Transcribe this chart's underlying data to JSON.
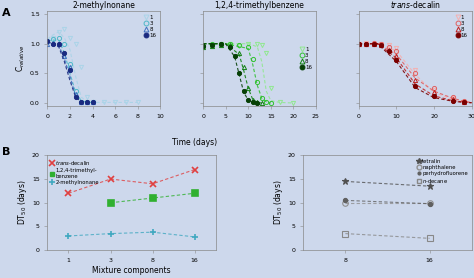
{
  "background_color": "#cdd8ec",
  "panel_A": {
    "subplot1": {
      "title": "2-methylnonane",
      "xlim": [
        0,
        10
      ],
      "ylim": [
        -0.05,
        1.55
      ],
      "xticks": [
        0,
        2,
        4,
        6,
        8,
        10
      ],
      "yticks": [
        0.0,
        0.5,
        1.0,
        1.5
      ],
      "ytick_labels": [
        "0.0",
        "0.5",
        "1.0",
        "1.5"
      ],
      "ylabel": "C$_\\mathregular{relative}$",
      "series": {
        "1": {
          "x": [
            0,
            0.5,
            1,
            1.5,
            2,
            2.5,
            3,
            3.5,
            4,
            5,
            6,
            7,
            8
          ],
          "y": [
            1.05,
            1.1,
            1.2,
            1.25,
            1.1,
            1.0,
            0.6,
            0.1,
            0.02,
            0.01,
            0.01,
            0.01,
            0.01
          ],
          "color": "#aad4e8",
          "marker": "v",
          "filled": false,
          "ms": 3
        },
        "3": {
          "x": [
            0,
            0.5,
            1,
            1.5,
            2,
            2.5,
            3,
            3.5,
            4
          ],
          "y": [
            1.05,
            1.08,
            1.1,
            1.0,
            0.65,
            0.2,
            0.02,
            0.01,
            0.01
          ],
          "color": "#50b8c8",
          "marker": "o",
          "filled": false,
          "ms": 3
        },
        "8": {
          "x": [
            0,
            0.5,
            1,
            1.5,
            2,
            2.5,
            3,
            3.5,
            4
          ],
          "y": [
            1.0,
            1.02,
            1.0,
            0.8,
            0.6,
            0.15,
            0.02,
            0.01,
            0.01
          ],
          "color": "#4070c0",
          "marker": "^",
          "filled": false,
          "ms": 3
        },
        "16": {
          "x": [
            0,
            0.5,
            1,
            1.5,
            2,
            2.5,
            3,
            3.5,
            4
          ],
          "y": [
            1.05,
            1.0,
            1.0,
            0.85,
            0.55,
            0.1,
            0.02,
            0.01,
            0.01
          ],
          "color": "#1a2a80",
          "marker": "o",
          "filled": true,
          "ms": 3
        }
      },
      "fit": {
        "1": {
          "x": [
            0,
            0.5,
            1,
            1.5,
            2,
            2.5,
            3,
            3.5,
            4,
            5,
            6,
            7,
            8
          ],
          "y": [
            1.08,
            1.15,
            1.2,
            1.1,
            0.9,
            0.45,
            0.1,
            0.03,
            0.01,
            0.01,
            0.01,
            0.01,
            0.01
          ]
        },
        "3": {
          "x": [
            0,
            0.5,
            1,
            1.5,
            2,
            2.5,
            3,
            3.5,
            4
          ],
          "y": [
            1.05,
            1.06,
            1.06,
            0.85,
            0.5,
            0.18,
            0.04,
            0.01,
            0.01
          ]
        },
        "8": {
          "x": [
            0,
            0.5,
            1,
            1.5,
            2,
            2.5,
            3,
            3.5,
            4
          ],
          "y": [
            1.0,
            1.02,
            0.98,
            0.75,
            0.45,
            0.12,
            0.03,
            0.01,
            0.01
          ]
        },
        "16": {
          "x": [
            0,
            0.5,
            1,
            1.5,
            2,
            2.5,
            3,
            3.5,
            4
          ],
          "y": [
            1.04,
            1.0,
            0.95,
            0.7,
            0.38,
            0.1,
            0.02,
            0.01,
            0.01
          ]
        }
      },
      "fit_colors": {
        "1": "#aad4e8",
        "3": "#50b8c8",
        "8": "#4070c0",
        "16": "#1a2a80"
      },
      "legend_colors": [
        "#aad4e8",
        "#50b8c8",
        "#4070c0",
        "#1a2a80"
      ],
      "legend_markers": [
        "v",
        "o",
        "^",
        "o"
      ],
      "legend_filleds": [
        false,
        false,
        false,
        true
      ]
    },
    "subplot2": {
      "title": "1,2,4-trimethylbenzene",
      "xlim": [
        0,
        25
      ],
      "ylim": [
        -0.05,
        1.55
      ],
      "xticks": [
        0,
        5,
        10,
        15,
        20,
        25
      ],
      "yticks": [
        0.0,
        0.5,
        1.0,
        1.5
      ],
      "series": {
        "1": {
          "x": [
            0,
            2,
            4,
            6,
            8,
            10,
            12,
            13,
            14,
            15,
            17,
            20
          ],
          "y": [
            0.95,
            0.98,
            1.0,
            1.0,
            0.97,
            1.0,
            1.0,
            0.98,
            0.85,
            0.25,
            0.02,
            0.0
          ],
          "color": "#90e890",
          "marker": "v",
          "filled": false,
          "ms": 3
        },
        "3": {
          "x": [
            0,
            2,
            4,
            6,
            8,
            10,
            11,
            12,
            13,
            14,
            15
          ],
          "y": [
            0.97,
            0.99,
            1.0,
            1.0,
            0.98,
            0.95,
            0.75,
            0.35,
            0.08,
            0.01,
            0.0
          ],
          "color": "#30c030",
          "marker": "o",
          "filled": false,
          "ms": 3
        },
        "8": {
          "x": [
            0,
            2,
            4,
            6,
            8,
            9,
            10,
            11,
            12,
            13
          ],
          "y": [
            0.95,
            0.97,
            0.98,
            0.98,
            0.85,
            0.6,
            0.25,
            0.05,
            0.01,
            0.0
          ],
          "color": "#108010",
          "marker": "^",
          "filled": false,
          "ms": 3
        },
        "16": {
          "x": [
            0,
            2,
            4,
            6,
            7,
            8,
            9,
            10,
            11,
            12
          ],
          "y": [
            0.97,
            0.98,
            0.99,
            0.95,
            0.8,
            0.5,
            0.2,
            0.05,
            0.01,
            0.0
          ],
          "color": "#064006",
          "marker": "o",
          "filled": true,
          "ms": 3
        }
      },
      "fit": {
        "1": {
          "x": [
            0,
            5,
            10,
            12,
            13,
            14,
            15,
            17,
            20
          ],
          "y": [
            1.0,
            1.0,
            1.0,
            0.95,
            0.7,
            0.2,
            0.04,
            0.01,
            0.0
          ]
        },
        "3": {
          "x": [
            0,
            5,
            10,
            11,
            12,
            13,
            14,
            15
          ],
          "y": [
            1.0,
            1.0,
            0.92,
            0.65,
            0.3,
            0.08,
            0.02,
            0.0
          ]
        },
        "8": {
          "x": [
            0,
            5,
            8,
            9,
            10,
            11,
            12,
            13
          ],
          "y": [
            1.0,
            1.0,
            0.82,
            0.55,
            0.25,
            0.06,
            0.01,
            0.0
          ]
        },
        "16": {
          "x": [
            0,
            5,
            7,
            8,
            9,
            10,
            11,
            12
          ],
          "y": [
            1.0,
            1.0,
            0.78,
            0.48,
            0.18,
            0.05,
            0.01,
            0.0
          ]
        }
      },
      "fit_colors": {
        "1": "#90e890",
        "3": "#30c030",
        "8": "#108010",
        "16": "#064006"
      },
      "legend_colors": [
        "#90e890",
        "#30c030",
        "#108010",
        "#064006"
      ],
      "legend_markers": [
        "v",
        "o",
        "^",
        "o"
      ],
      "legend_filleds": [
        false,
        false,
        false,
        true
      ]
    },
    "subplot3": {
      "title": "trans-decalin",
      "xlim": [
        0,
        30
      ],
      "ylim": [
        -0.05,
        1.55
      ],
      "xticks": [
        0,
        10,
        20,
        30
      ],
      "yticks": [
        0.0,
        0.5,
        1.0,
        1.5
      ],
      "series": {
        "1": {
          "x": [
            0,
            2,
            4,
            6,
            8,
            10,
            15,
            20,
            25,
            28
          ],
          "y": [
            1.0,
            1.02,
            1.0,
            1.0,
            0.98,
            0.92,
            0.55,
            0.22,
            0.08,
            0.02
          ],
          "color": "#f5b0b0",
          "marker": "v",
          "filled": false,
          "ms": 3
        },
        "3": {
          "x": [
            0,
            2,
            4,
            6,
            8,
            10,
            15,
            20,
            25,
            28
          ],
          "y": [
            1.0,
            1.0,
            1.02,
            1.0,
            0.95,
            0.88,
            0.5,
            0.25,
            0.1,
            0.04
          ],
          "color": "#e06060",
          "marker": "o",
          "filled": false,
          "ms": 3
        },
        "8": {
          "x": [
            0,
            2,
            4,
            6,
            8,
            10,
            15,
            20,
            25,
            28
          ],
          "y": [
            1.0,
            1.0,
            1.0,
            0.98,
            0.9,
            0.8,
            0.38,
            0.18,
            0.06,
            0.01
          ],
          "color": "#c02020",
          "marker": "^",
          "filled": false,
          "ms": 3
        },
        "16": {
          "x": [
            0,
            2,
            4,
            6,
            8,
            10,
            15,
            20,
            25,
            28
          ],
          "y": [
            1.0,
            1.0,
            1.0,
            0.98,
            0.88,
            0.72,
            0.28,
            0.12,
            0.04,
            0.01
          ],
          "color": "#7a0000",
          "marker": "o",
          "filled": true,
          "ms": 3
        }
      },
      "fit": {
        "1": {
          "x": [
            0,
            5,
            10,
            15,
            20,
            25,
            28,
            30
          ],
          "y": [
            1.0,
            1.0,
            0.88,
            0.48,
            0.18,
            0.06,
            0.02,
            0.01
          ]
        },
        "3": {
          "x": [
            0,
            5,
            10,
            15,
            20,
            25,
            28,
            30
          ],
          "y": [
            1.0,
            1.0,
            0.82,
            0.42,
            0.2,
            0.08,
            0.03,
            0.01
          ]
        },
        "8": {
          "x": [
            0,
            5,
            10,
            15,
            20,
            25,
            28,
            30
          ],
          "y": [
            1.0,
            1.0,
            0.76,
            0.32,
            0.12,
            0.04,
            0.015,
            0.005
          ]
        },
        "16": {
          "x": [
            0,
            5,
            10,
            15,
            20,
            25,
            28,
            30
          ],
          "y": [
            1.0,
            1.0,
            0.7,
            0.26,
            0.09,
            0.03,
            0.01,
            0.005
          ]
        }
      },
      "fit_colors": {
        "1": "#f5b0b0",
        "3": "#e06060",
        "8": "#c02020",
        "16": "#7a0000"
      },
      "legend_colors": [
        "#f5b0b0",
        "#e06060",
        "#c02020",
        "#7a0000"
      ],
      "legend_markers": [
        "v",
        "o",
        "^",
        "o"
      ],
      "legend_filleds": [
        false,
        false,
        false,
        true
      ]
    },
    "xlabel": "Time (days)"
  },
  "panel_B": {
    "subplot1": {
      "x": [
        1,
        3,
        8,
        16
      ],
      "x_positions": [
        0,
        1,
        2,
        3
      ],
      "x_labels": [
        "1",
        "3",
        "8",
        "16"
      ],
      "series": {
        "trans-decalin": {
          "y": [
            12.0,
            15.0,
            14.0,
            17.0
          ],
          "color": "#e04040",
          "marker": "x",
          "ms": 5
        },
        "1,2,4-trimethylbenzene": {
          "y": [
            null,
            10.0,
            11.0,
            12.0
          ],
          "color": "#30b030",
          "marker": "s",
          "ms": 4
        },
        "2-methylnonane": {
          "y": [
            3.0,
            3.5,
            3.8,
            2.8
          ],
          "color": "#40a8c0",
          "marker": "+",
          "ms": 5
        }
      },
      "ylim": [
        0,
        20
      ],
      "yticks": [
        0,
        5,
        10,
        15,
        20
      ],
      "xlabel": "Mixture components",
      "ylabel": "DT$_\\mathregular{50}$ (days)"
    },
    "subplot2": {
      "x": [
        8,
        16
      ],
      "x_positions": [
        0,
        1
      ],
      "x_labels": [
        "8",
        "16"
      ],
      "series": {
        "tetralin": {
          "y": [
            14.5,
            13.5
          ],
          "color": "#505050",
          "marker": "*",
          "ms": 5
        },
        "naphthalene": {
          "y": [
            10.0,
            10.0
          ],
          "color": "#909090",
          "marker": "o",
          "ms": 4
        },
        "perhydrofluorene": {
          "y": [
            10.5,
            9.8
          ],
          "color": "#606060",
          "marker": ".",
          "ms": 6
        },
        "n-decane": {
          "y": [
            3.5,
            2.5
          ],
          "color": "#888888",
          "marker": "s",
          "ms": 4
        }
      },
      "ylim": [
        0,
        20
      ],
      "yticks": [
        0,
        5,
        10,
        15,
        20
      ],
      "xlabel": "",
      "ylabel": "DT$_\\mathregular{50}$ (days)"
    }
  }
}
